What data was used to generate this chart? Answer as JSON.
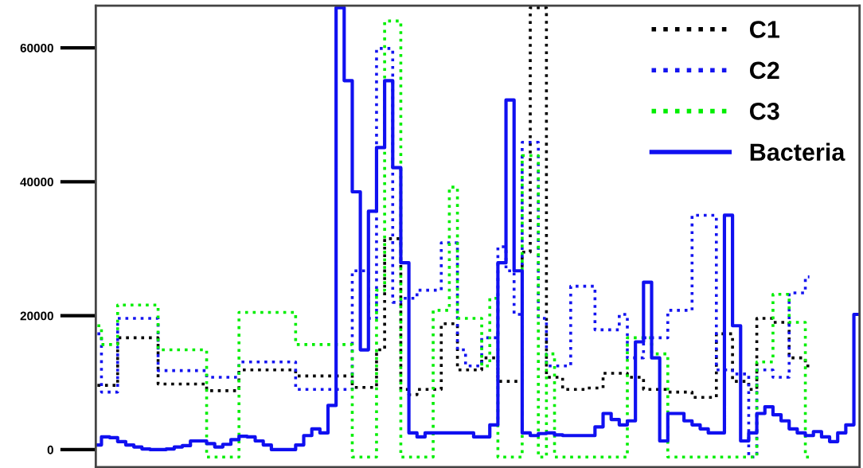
{
  "chart_data": {
    "type": "step",
    "categories": [
      null,
      null,
      null,
      null,
      null,
      null,
      null,
      null,
      null,
      null,
      null,
      null,
      null,
      null,
      null,
      null,
      null,
      null,
      null,
      null,
      null,
      null,
      null,
      null,
      null,
      null,
      null,
      null,
      null,
      null,
      null,
      null,
      null,
      null,
      null,
      null,
      null,
      null,
      null,
      null,
      null,
      null,
      null,
      null,
      null,
      null,
      null,
      null,
      null,
      null,
      null,
      null,
      null,
      null,
      null,
      null,
      null,
      null,
      null,
      null,
      null,
      null,
      null,
      null,
      null,
      null,
      null,
      null,
      null,
      null,
      null,
      null,
      null,
      null,
      null,
      null,
      null,
      null,
      null,
      null,
      null,
      null,
      null,
      null,
      null,
      null,
      null,
      null,
      null,
      null,
      null,
      null,
      null,
      null,
      null
    ],
    "series": [
      {
        "name": "C1",
        "color": "#000000",
        "line_style": "dotted",
        "values": [
          9600,
          9600,
          9600,
          16700,
          16700,
          16700,
          16700,
          16700,
          9800,
          9800,
          9800,
          9800,
          9800,
          9800,
          8800,
          8800,
          8800,
          8800,
          11900,
          11900,
          11900,
          11900,
          11900,
          11900,
          11900,
          11000,
          11000,
          11000,
          11000,
          11000,
          11000,
          11000,
          9300,
          9300,
          9300,
          14900,
          31500,
          31500,
          9000,
          8200,
          9000,
          9000,
          9000,
          18800,
          18800,
          11900,
          11900,
          11900,
          13700,
          13700,
          10200,
          10200,
          10200,
          29500,
          66000,
          66000,
          10800,
          10800,
          9000,
          9000,
          9000,
          9200,
          9200,
          11400,
          11400,
          11400,
          10800,
          10800,
          9000,
          9000,
          9000,
          8600,
          8600,
          8600,
          7800,
          7800,
          7800,
          17300,
          17300,
          10200,
          10200,
          9000,
          19600,
          19600,
          19000,
          19000,
          13700,
          13700,
          12500,
          null,
          null,
          null,
          null,
          null,
          null
        ]
      },
      {
        "name": "C2",
        "color": "#1414f0",
        "line_style": "dotted",
        "values": [
          17300,
          8600,
          8600,
          19600,
          19600,
          19600,
          19600,
          19600,
          11800,
          11800,
          11800,
          11800,
          11800,
          11800,
          10800,
          10800,
          10800,
          10800,
          13100,
          13100,
          13100,
          13100,
          13100,
          13100,
          13100,
          9000,
          9000,
          9000,
          9000,
          9000,
          9000,
          9000,
          26700,
          26700,
          19600,
          59900,
          59900,
          22000,
          22600,
          22600,
          23800,
          23800,
          23800,
          30900,
          30900,
          14900,
          12500,
          12500,
          16700,
          16700,
          30300,
          26700,
          20200,
          45900,
          45900,
          19600,
          12500,
          12500,
          12500,
          24400,
          24400,
          24400,
          17900,
          17900,
          17900,
          20200,
          13700,
          13700,
          16700,
          16700,
          16700,
          20800,
          20800,
          20800,
          35000,
          35000,
          35000,
          11900,
          11900,
          11300,
          11300,
          -1100,
          11900,
          11900,
          10800,
          10800,
          23400,
          23400,
          25800,
          null,
          null,
          null,
          null,
          null,
          null
        ]
      },
      {
        "name": "C3",
        "color": "#00ee00",
        "line_style": "dotted",
        "values": [
          18500,
          15700,
          15700,
          21600,
          21600,
          21600,
          21600,
          21600,
          14900,
          14900,
          14900,
          14900,
          14900,
          14900,
          -1100,
          -1100,
          -1100,
          -1100,
          20500,
          20500,
          20500,
          20500,
          20500,
          20500,
          20500,
          15700,
          15700,
          15700,
          15700,
          15700,
          15700,
          15700,
          -1100,
          -1100,
          -1100,
          23800,
          64000,
          64000,
          -1100,
          -1100,
          -1100,
          -1100,
          20800,
          20800,
          39200,
          19600,
          19600,
          19600,
          12500,
          22600,
          -1100,
          -1100,
          -1100,
          43900,
          43900,
          -1100,
          14300,
          -1100,
          -1100,
          -1100,
          -1100,
          -1100,
          -1100,
          -1100,
          -1100,
          -1100,
          16700,
          16700,
          16700,
          14300,
          14300,
          -1100,
          -1100,
          -1100,
          -1100,
          -1100,
          -1100,
          -1100,
          -1100,
          -1100,
          -1100,
          -1100,
          13100,
          13100,
          23200,
          23200,
          19000,
          19000,
          -1100,
          null,
          null,
          null,
          null,
          null,
          null
        ]
      },
      {
        "name": "Bacteria",
        "color": "#1010f0",
        "line_style": "solid",
        "values": [
          700,
          1900,
          1800,
          1200,
          700,
          400,
          100,
          0,
          0,
          100,
          400,
          600,
          1300,
          1300,
          900,
          400,
          800,
          1500,
          2000,
          1900,
          1300,
          700,
          0,
          0,
          0,
          700,
          2100,
          3100,
          2500,
          6600,
          66000,
          55100,
          38500,
          14900,
          35600,
          45100,
          55100,
          42100,
          27900,
          2500,
          1900,
          2500,
          2500,
          2500,
          2500,
          2500,
          2500,
          1900,
          1900,
          3700,
          27900,
          52200,
          26700,
          2500,
          2100,
          2400,
          2500,
          2200,
          2100,
          2100,
          2100,
          2100,
          3400,
          5400,
          4500,
          3700,
          4300,
          16100,
          25000,
          13700,
          1300,
          5400,
          5400,
          4300,
          3700,
          3100,
          2500,
          2500,
          35000,
          18500,
          1300,
          2500,
          5400,
          6400,
          5200,
          4300,
          3100,
          2500,
          2100,
          2700,
          1900,
          1200,
          2500,
          3700,
          20200
        ]
      }
    ],
    "ylim": [
      -2600,
      66300
    ],
    "yticks": [
      0,
      20000,
      40000,
      60000
    ],
    "tick_labels": "y",
    "grid": false,
    "legend": "top right"
  }
}
